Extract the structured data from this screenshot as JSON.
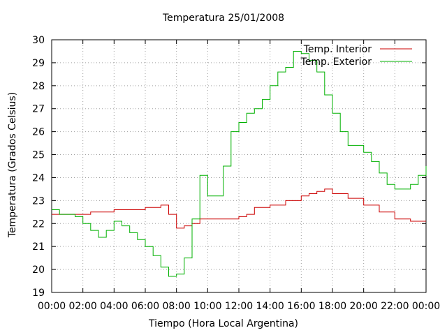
{
  "chart_data": {
    "type": "line",
    "title": "Temperatura 25/01/2008",
    "xlabel": "Tiempo (Hora Local Argentina)",
    "ylabel": "Temperatura (Grados Celsius)",
    "xlim": [
      "00:00",
      "24:00"
    ],
    "x_ticks": [
      "00:00",
      "02:00",
      "04:00",
      "06:00",
      "08:00",
      "10:00",
      "12:00",
      "14:00",
      "16:00",
      "18:00",
      "20:00",
      "22:00",
      "00:00"
    ],
    "ylim": [
      19,
      30
    ],
    "y_ticks": [
      19,
      20,
      21,
      22,
      23,
      24,
      25,
      26,
      27,
      28,
      29,
      30
    ],
    "grid": true,
    "legend_position": "top-right",
    "series": [
      {
        "name": "Temp. Interior",
        "color": "#cc0000",
        "x": [
          "00:00",
          "01:00",
          "02:00",
          "02:30",
          "03:00",
          "04:00",
          "05:00",
          "06:00",
          "07:00",
          "07:10",
          "07:30",
          "08:00",
          "08:30",
          "09:00",
          "09:30",
          "10:00",
          "11:00",
          "12:00",
          "12:30",
          "13:00",
          "14:00",
          "15:00",
          "16:00",
          "16:30",
          "17:00",
          "17:30",
          "18:00",
          "19:00",
          "19:30",
          "20:00",
          "21:00",
          "22:00",
          "23:00",
          "24:00"
        ],
        "values": [
          22.4,
          22.4,
          22.4,
          22.5,
          22.5,
          22.6,
          22.6,
          22.7,
          22.8,
          22.8,
          22.4,
          21.8,
          21.9,
          22.0,
          22.2,
          22.2,
          22.2,
          22.3,
          22.4,
          22.7,
          22.8,
          23.0,
          23.2,
          23.3,
          23.4,
          23.5,
          23.3,
          23.1,
          23.1,
          22.8,
          22.5,
          22.2,
          22.1,
          22.1
        ]
      },
      {
        "name": "Temp. Exterior",
        "color": "#00b000",
        "x": [
          "00:00",
          "00:30",
          "01:00",
          "01:30",
          "02:00",
          "02:30",
          "03:00",
          "03:30",
          "04:00",
          "04:30",
          "05:00",
          "05:30",
          "06:00",
          "06:30",
          "07:00",
          "07:30",
          "08:00",
          "08:30",
          "09:00",
          "09:30",
          "10:00",
          "10:30",
          "11:00",
          "11:30",
          "12:00",
          "12:30",
          "13:00",
          "13:30",
          "14:00",
          "14:30",
          "15:00",
          "15:30",
          "16:00",
          "16:30",
          "17:00",
          "17:30",
          "18:00",
          "18:30",
          "19:00",
          "19:30",
          "20:00",
          "20:30",
          "21:00",
          "21:30",
          "22:00",
          "22:30",
          "23:00",
          "23:30",
          "24:00"
        ],
        "values": [
          22.6,
          22.4,
          22.4,
          22.3,
          22.0,
          21.7,
          21.4,
          21.7,
          22.1,
          21.9,
          21.6,
          21.3,
          21.0,
          20.6,
          20.1,
          19.7,
          19.8,
          20.5,
          22.2,
          24.1,
          23.2,
          23.2,
          24.5,
          26.0,
          26.4,
          26.8,
          27.0,
          27.4,
          28.0,
          28.6,
          28.8,
          29.5,
          29.4,
          29.1,
          28.6,
          27.6,
          26.8,
          26.0,
          25.4,
          25.4,
          25.1,
          24.7,
          24.2,
          23.7,
          23.5,
          23.5,
          23.7,
          24.1,
          24.5
        ]
      }
    ]
  }
}
